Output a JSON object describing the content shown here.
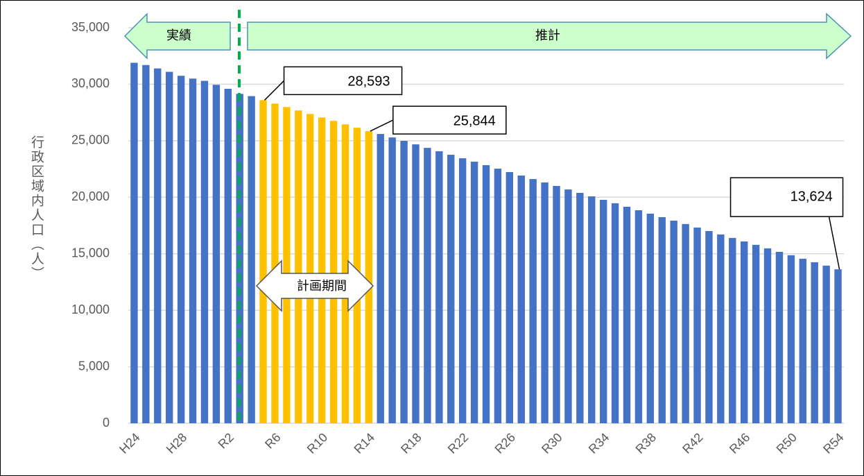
{
  "chart_data": {
    "type": "bar",
    "y_label": "行政区域内人口（人）",
    "categories": [
      "H24",
      null,
      null,
      null,
      "H28",
      null,
      null,
      null,
      "R2",
      null,
      null,
      null,
      "R6",
      null,
      null,
      null,
      "R10",
      null,
      null,
      null,
      "R14",
      null,
      null,
      null,
      "R18",
      null,
      null,
      null,
      "R22",
      null,
      null,
      null,
      "R26",
      null,
      null,
      null,
      "R30",
      null,
      null,
      null,
      "R34",
      null,
      null,
      null,
      "R38",
      null,
      null,
      null,
      "R42",
      null,
      null,
      null,
      "R46",
      null,
      null,
      null,
      "R50",
      null,
      null,
      null,
      "R54"
    ],
    "values": [
      31900,
      31700,
      31400,
      31100,
      30750,
      30500,
      30300,
      29950,
      29600,
      29150,
      28950,
      28593,
      28290,
      27980,
      27680,
      27370,
      27060,
      26760,
      26450,
      26150,
      25844,
      25600,
      25290,
      24990,
      24680,
      24370,
      24070,
      23760,
      23450,
      23150,
      22840,
      22530,
      22230,
      21920,
      21610,
      21310,
      21000,
      20690,
      20390,
      20080,
      19770,
      19470,
      19160,
      18850,
      18550,
      18240,
      17930,
      17630,
      17320,
      17010,
      16710,
      16400,
      16090,
      15790,
      15480,
      15170,
      14870,
      14560,
      14250,
      13950,
      13624
    ],
    "value_labels": [
      null,
      null,
      null,
      null,
      null,
      null,
      null,
      null,
      null,
      null,
      null,
      "28,593",
      null,
      null,
      null,
      null,
      null,
      null,
      null,
      null,
      "25,844",
      null,
      null,
      null,
      null,
      null,
      null,
      null,
      null,
      null,
      null,
      null,
      null,
      null,
      null,
      null,
      null,
      null,
      null,
      null,
      null,
      null,
      null,
      null,
      null,
      null,
      null,
      null,
      null,
      null,
      null,
      null,
      null,
      null,
      null,
      null,
      null,
      null,
      null,
      null,
      "13,624"
    ],
    "colors": [
      "#4472c4",
      "#4472c4",
      "#4472c4",
      "#4472c4",
      "#4472c4",
      "#4472c4",
      "#4472c4",
      "#4472c4",
      "#4472c4",
      "#4472c4",
      "#4472c4",
      "#ffc000",
      "#ffc000",
      "#ffc000",
      "#ffc000",
      "#ffc000",
      "#ffc000",
      "#ffc000",
      "#ffc000",
      "#ffc000",
      "#ffc000",
      "#4472c4",
      "#4472c4",
      "#4472c4",
      "#4472c4",
      "#4472c4",
      "#4472c4",
      "#4472c4",
      "#4472c4",
      "#4472c4",
      "#4472c4",
      "#4472c4",
      "#4472c4",
      "#4472c4",
      "#4472c4",
      "#4472c4",
      "#4472c4",
      "#4472c4",
      "#4472c4",
      "#4472c4",
      "#4472c4",
      "#4472c4",
      "#4472c4",
      "#4472c4",
      "#4472c4",
      "#4472c4",
      "#4472c4",
      "#4472c4",
      "#4472c4",
      "#4472c4",
      "#4472c4",
      "#4472c4",
      "#4472c4",
      "#4472c4",
      "#4472c4",
      "#4472c4",
      "#4472c4",
      "#4472c4",
      "#4472c4",
      "#4472c4",
      "#4472c4"
    ],
    "ylim": [
      0,
      35000
    ],
    "yticks": [
      0,
      {
        "value": 5000,
        "label": "5,000"
      },
      {
        "value": 10000,
        "label": "10,000"
      },
      {
        "value": 15000,
        "label": "15,000"
      },
      {
        "value": 20000,
        "label": "20,000"
      },
      {
        "value": 25000,
        "label": "25,000"
      },
      {
        "value": 30000,
        "label": "30,000"
      },
      {
        "value": 35000,
        "label": "35,000"
      }
    ],
    "grid": true,
    "annotations": {
      "actual": "実績",
      "forecast": "推計",
      "plan_period": "計画期間"
    }
  }
}
